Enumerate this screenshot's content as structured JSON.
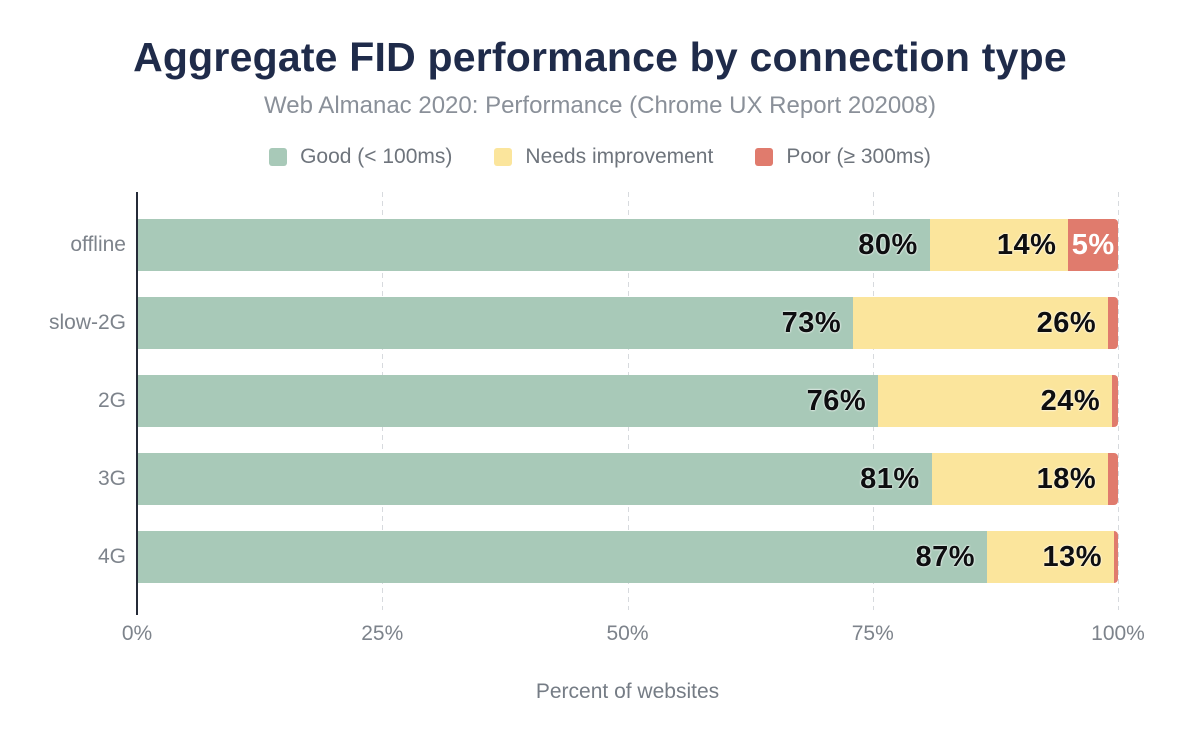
{
  "chart_data": {
    "type": "bar",
    "orientation": "horizontal",
    "stacked": true,
    "title": "Aggregate FID performance by connection type",
    "subtitle": "Web Almanac 2020: Performance (Chrome UX Report 202008)",
    "xlabel": "Percent of websites",
    "ylabel": "",
    "xlim": [
      0,
      100
    ],
    "grid": "dashed-vertical",
    "legend_position": "top",
    "categories": [
      "offline",
      "slow-2G",
      "2G",
      "3G",
      "4G"
    ],
    "series": [
      {
        "name": "Good (< 100ms)",
        "color": "#a8c9b8",
        "values": [
          80,
          73,
          76,
          81,
          87
        ]
      },
      {
        "name": "Needs improvement",
        "color": "#fbe59c",
        "values": [
          14,
          26,
          24,
          18,
          13
        ]
      },
      {
        "name": "Poor (≥ 300ms)",
        "color": "#e07b6d",
        "values": [
          5,
          1,
          0.6,
          1,
          0.4
        ]
      }
    ],
    "bar_labels": [
      [
        "80%",
        "14%",
        "5%"
      ],
      [
        "73%",
        "26%",
        null
      ],
      [
        "76%",
        "24%",
        null
      ],
      [
        "81%",
        "18%",
        null
      ],
      [
        "87%",
        "13%",
        null
      ]
    ],
    "x_ticks": [
      "0%",
      "25%",
      "50%",
      "75%",
      "100%"
    ],
    "x_tick_positions": [
      0,
      25,
      50,
      75,
      100
    ],
    "grid_positions": [
      25,
      50,
      75,
      100
    ]
  },
  "colors": {
    "title": "#1f2b4a",
    "subtitle": "#8a9099",
    "axis_line": "#252b38",
    "tick_text": "#7d838b",
    "gridline": "#d7dade",
    "bottom_border": "#9aa3a0"
  }
}
